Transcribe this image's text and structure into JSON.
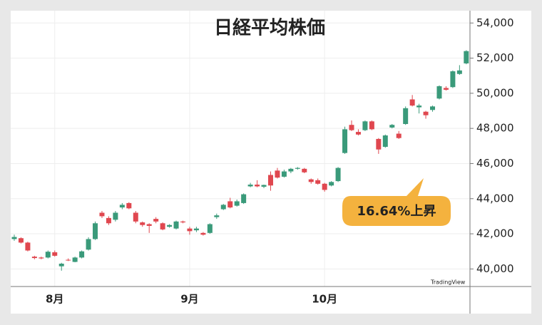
{
  "chart_data": {
    "type": "candlestick",
    "title": "日経平均株価",
    "categories": [
      null,
      null,
      null,
      null,
      null,
      null,
      "8月",
      null,
      null,
      null,
      null,
      null,
      null,
      null,
      null,
      null,
      null,
      null,
      null,
      null,
      null,
      null,
      null,
      null,
      null,
      null,
      "9月",
      null,
      null,
      null,
      null,
      null,
      null,
      null,
      null,
      null,
      null,
      null,
      null,
      null,
      null,
      null,
      null,
      null,
      null,
      null,
      "10月",
      null,
      null,
      null,
      null,
      null,
      null,
      null,
      null,
      null,
      null,
      null,
      null,
      null,
      null,
      null,
      null,
      null,
      null,
      null,
      null,
      null
    ],
    "open": [
      41700,
      41750,
      41500,
      40700,
      40650,
      40650,
      40950,
      40150,
      40520,
      40400,
      40650,
      41100,
      41700,
      43200,
      42900,
      42800,
      43500,
      43750,
      43200,
      42650,
      42550,
      42850,
      42600,
      42400,
      42300,
      42700,
      42300,
      42200,
      42050,
      42050,
      42950,
      43400,
      43850,
      43600,
      43750,
      44700,
      44800,
      44680,
      45350,
      45600,
      45250,
      45550,
      45700,
      45700,
      45100,
      45050,
      44850,
      44750,
      45000,
      46600,
      48200,
      47800,
      47900,
      48400,
      47400,
      46950,
      48050,
      47700,
      48250,
      49650,
      49200,
      48950,
      49050,
      49700,
      50300,
      50350,
      51100,
      51700
    ],
    "high": [
      41950,
      41800,
      41550,
      40750,
      40700,
      41050,
      41050,
      40350,
      40600,
      40700,
      41050,
      41800,
      42700,
      43300,
      43000,
      43300,
      43750,
      43800,
      43300,
      42700,
      42600,
      42950,
      42650,
      42550,
      42750,
      42750,
      42400,
      42400,
      42100,
      42600,
      43150,
      43700,
      44050,
      43950,
      44300,
      44900,
      45050,
      44800,
      45550,
      45750,
      45650,
      45750,
      45800,
      45750,
      45150,
      45150,
      44900,
      45000,
      45800,
      48100,
      48450,
      47950,
      48450,
      48450,
      47450,
      47650,
      48250,
      47850,
      49250,
      49900,
      49400,
      49000,
      49300,
      50450,
      50400,
      51300,
      51600,
      52450
    ],
    "low": [
      41600,
      41450,
      41000,
      40550,
      40550,
      40600,
      40700,
      39900,
      40450,
      40380,
      40600,
      41050,
      41650,
      42900,
      42500,
      42700,
      43400,
      43400,
      42600,
      42400,
      42050,
      42600,
      42200,
      42350,
      42250,
      42600,
      41950,
      42100,
      41900,
      42000,
      42850,
      43350,
      43450,
      43550,
      43700,
      44650,
      44650,
      44600,
      44450,
      45150,
      45200,
      45450,
      45650,
      45450,
      44850,
      44800,
      44400,
      44700,
      44950,
      46550,
      47850,
      47600,
      47850,
      47900,
      46550,
      46900,
      48000,
      47400,
      48200,
      49250,
      48850,
      48550,
      48950,
      49650,
      50150,
      50300,
      51050,
      51650
    ],
    "close": [
      41820,
      41500,
      41050,
      40620,
      40600,
      40980,
      40750,
      40300,
      40480,
      40650,
      41000,
      41700,
      42600,
      43000,
      42600,
      43200,
      43650,
      43450,
      42700,
      42500,
      42450,
      42700,
      42250,
      42500,
      42700,
      42650,
      42150,
      42300,
      41950,
      42550,
      43050,
      43650,
      43500,
      43850,
      44250,
      44800,
      44700,
      44780,
      44750,
      45200,
      45550,
      45700,
      45750,
      45500,
      44950,
      44850,
      44500,
      44950,
      45750,
      47950,
      47900,
      47650,
      48400,
      47950,
      46800,
      47600,
      48200,
      47450,
      49150,
      49300,
      49300,
      48750,
      49250,
      50400,
      50200,
      51250,
      51300,
      52400
    ],
    "up_color": "#3a9a7a",
    "down_color": "#e0474f",
    "ylim": [
      39000,
      54700
    ],
    "yticks": [
      {
        "value": 40000,
        "label": "40,000"
      },
      {
        "value": 42000,
        "label": "42,000"
      },
      {
        "value": 44000,
        "label": "44,000"
      },
      {
        "value": 46000,
        "label": "46,000"
      },
      {
        "value": 48000,
        "label": "48,000"
      },
      {
        "value": 50000,
        "label": "50,000"
      },
      {
        "value": 52000,
        "label": "52,000"
      },
      {
        "value": 54000,
        "label": "54,000"
      }
    ],
    "grid": true,
    "annotation": "16.64%上昇",
    "watermark": "TradingView"
  }
}
